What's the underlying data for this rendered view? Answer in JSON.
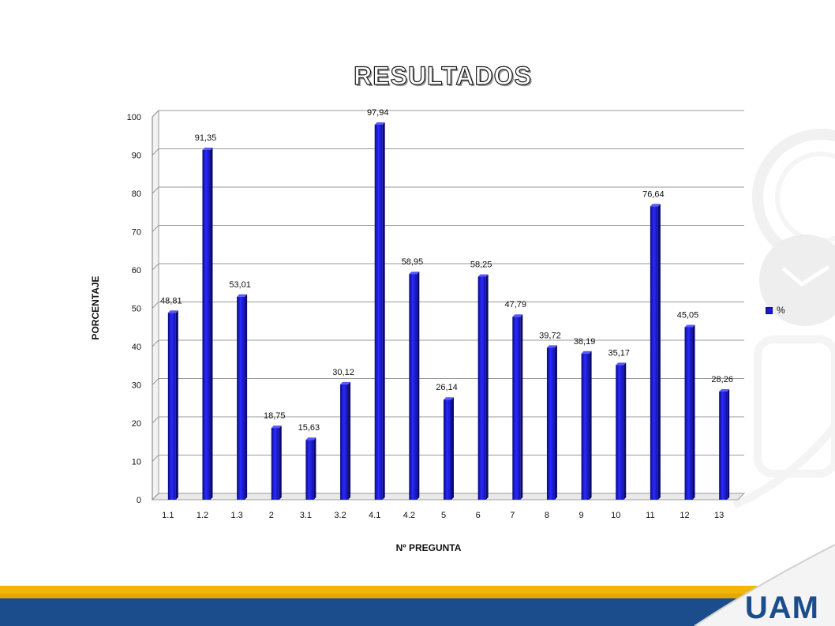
{
  "slide": {
    "logo_text": "UAM",
    "colors": {
      "bar": "#1a1ad8",
      "band_yellow": "#f2b705",
      "band_blue": "#1b4d8c"
    }
  },
  "chart_data": {
    "type": "bar",
    "title": "RESULTADOS",
    "xlabel": "Nº PREGUNTA",
    "ylabel": "PORCENTAJE",
    "categories": [
      "1.1",
      "1.2",
      "1.3",
      "2",
      "3.1",
      "3.2",
      "4.1",
      "4.2",
      "5",
      "6",
      "7",
      "8",
      "9",
      "10",
      "11",
      "12",
      "13"
    ],
    "series": [
      {
        "name": "%",
        "values": [
          48.81,
          91.35,
          53.01,
          18.75,
          15.63,
          30.12,
          97.94,
          58.95,
          26.14,
          58.25,
          47.79,
          39.72,
          38.19,
          35.17,
          76.64,
          45.05,
          28.26
        ],
        "labels": [
          "48,81",
          "91,35",
          "53,01",
          "18,75",
          "15,63",
          "30,12",
          "97,94",
          "58,95",
          "26,14",
          "58,25",
          "47,79",
          "39,72",
          "38,19",
          "35,17",
          "76,64",
          "45,05",
          "28,26"
        ]
      }
    ],
    "ylim": [
      0,
      100
    ],
    "yticks": [
      0,
      10,
      20,
      30,
      40,
      50,
      60,
      70,
      80,
      90,
      100
    ],
    "grid": true,
    "legend": "right",
    "three_d": true
  }
}
